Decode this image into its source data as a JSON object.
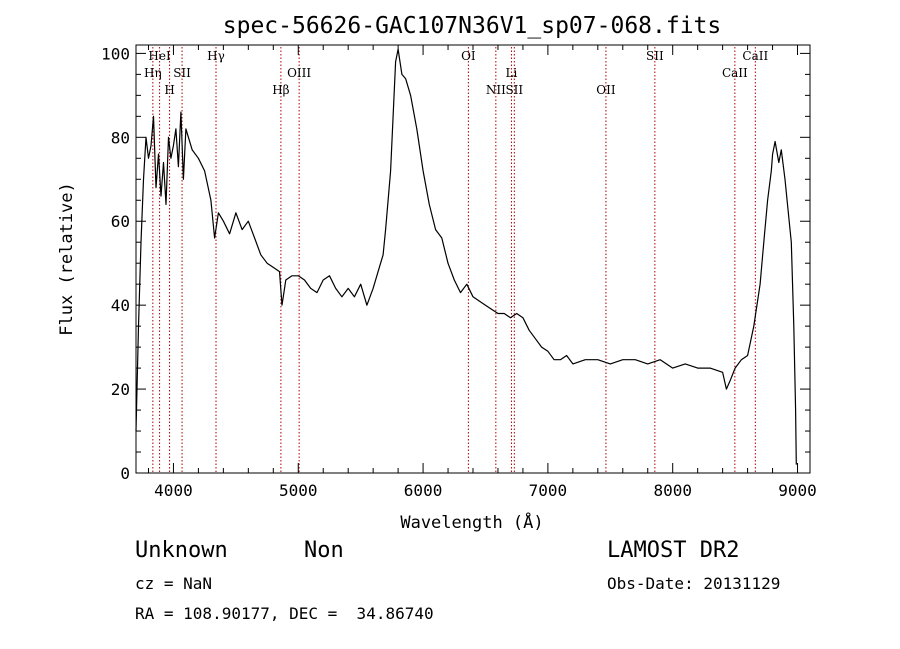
{
  "chart_data": {
    "type": "line",
    "title": "spec-56626-GAC107N36V1_sp07-068.fits",
    "xlabel": "Wavelength (Å)",
    "ylabel": "Flux (relative)",
    "xlim": [
      3700,
      9100
    ],
    "ylim": [
      0,
      102
    ],
    "x_ticks": [
      4000,
      5000,
      6000,
      7000,
      8000,
      9000
    ],
    "y_ticks": [
      0,
      20,
      40,
      60,
      80,
      100
    ],
    "grid": false,
    "series": [
      {
        "x": [
          3700,
          3720,
          3740,
          3760,
          3780,
          3800,
          3820,
          3840,
          3860,
          3880,
          3900,
          3920,
          3940,
          3960,
          3980,
          4000,
          4020,
          4040,
          4060,
          4080,
          4100,
          4150,
          4200,
          4250,
          4300,
          4330,
          4360,
          4400,
          4450,
          4500,
          4550,
          4600,
          4650,
          4700,
          4750,
          4800,
          4850,
          4870,
          4900,
          4950,
          5000,
          5050,
          5100,
          5150,
          5200,
          5250,
          5300,
          5350,
          5400,
          5450,
          5500,
          5550,
          5600,
          5640,
          5680,
          5700,
          5720,
          5740,
          5760,
          5780,
          5800,
          5830,
          5860,
          5900,
          5950,
          6000,
          6050,
          6100,
          6150,
          6200,
          6250,
          6300,
          6350,
          6400,
          6450,
          6500,
          6550,
          6600,
          6650,
          6700,
          6750,
          6800,
          6850,
          6900,
          6950,
          7000,
          7050,
          7100,
          7150,
          7200,
          7300,
          7400,
          7500,
          7600,
          7700,
          7800,
          7900,
          8000,
          8100,
          8200,
          8300,
          8400,
          8430,
          8460,
          8500,
          8550,
          8600,
          8650,
          8700,
          8730,
          8760,
          8790,
          8800,
          8820,
          8850,
          8870,
          8900,
          8920,
          8950,
          8970,
          8985,
          8990
        ],
        "y": [
          10,
          35,
          55,
          70,
          80,
          75,
          78,
          85,
          68,
          76,
          66,
          74,
          64,
          80,
          75,
          78,
          82,
          73,
          86,
          70,
          82,
          77,
          75,
          72,
          65,
          56,
          62,
          60,
          57,
          62,
          58,
          60,
          56,
          52,
          50,
          49,
          48,
          40,
          46,
          47,
          47,
          46,
          44,
          43,
          46,
          47,
          44,
          42,
          44,
          42,
          45,
          40,
          44,
          48,
          52,
          58,
          65,
          72,
          85,
          98,
          101,
          95,
          94,
          90,
          82,
          72,
          64,
          58,
          56,
          50,
          46,
          43,
          45,
          42,
          41,
          40,
          39,
          38,
          38,
          37,
          38,
          37,
          34,
          32,
          30,
          29,
          27,
          27,
          28,
          26,
          27,
          27,
          26,
          27,
          27,
          26,
          27,
          25,
          26,
          25,
          25,
          24,
          20,
          22,
          25,
          27,
          28,
          35,
          45,
          55,
          65,
          72,
          76,
          79,
          74,
          77,
          70,
          64,
          55,
          35,
          15,
          2
        ]
      }
    ],
    "line_markers": [
      {
        "label": "Hη",
        "x": 3835,
        "row": 2
      },
      {
        "label": "HeI",
        "x": 3889,
        "row": 1
      },
      {
        "label": "H",
        "x": 3969,
        "row": 3
      },
      {
        "label": "SII",
        "x": 4069,
        "row": 2
      },
      {
        "label": "Hγ",
        "x": 4341,
        "row": 1
      },
      {
        "label": "Hβ",
        "x": 4861,
        "row": 3
      },
      {
        "label": "OIII",
        "x": 5007,
        "row": 2
      },
      {
        "label": "OI",
        "x": 6363,
        "row": 1
      },
      {
        "label": "NII",
        "x": 6583,
        "row": 3
      },
      {
        "label": "Li",
        "x": 6708,
        "row": 2
      },
      {
        "label": "SII",
        "x": 6731,
        "row": 3
      },
      {
        "label": "OII",
        "x": 7465,
        "row": 3
      },
      {
        "label": "SII",
        "x": 7857,
        "row": 1
      },
      {
        "label": "CaII",
        "x": 8498,
        "row": 2
      },
      {
        "label": "CaII",
        "x": 8662,
        "row": 1
      }
    ]
  },
  "info": {
    "object_class": "Unknown",
    "subclass": "Non",
    "survey": "LAMOST DR2",
    "cz": "cz = NaN",
    "obs_date": "Obs-Date: 20131129",
    "coords": "RA = 108.90177, DEC =  34.86740"
  },
  "colors": {
    "spectrum": "#000000",
    "marker": "#b00000",
    "background": "#ffffff"
  }
}
